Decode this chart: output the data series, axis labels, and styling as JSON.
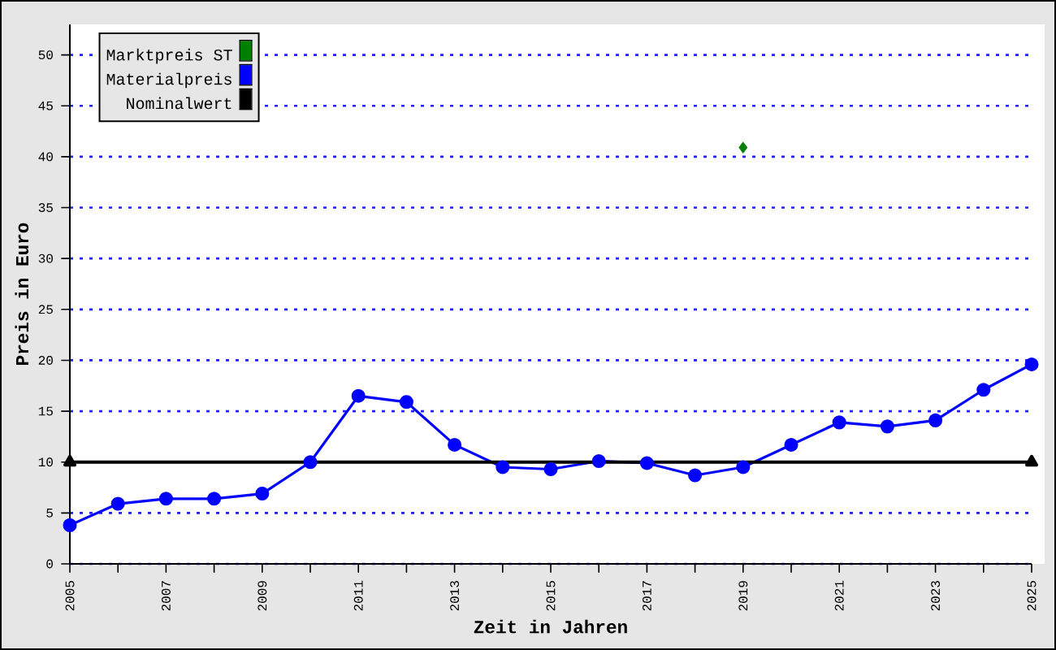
{
  "chart_data": {
    "type": "line",
    "xlabel": "Zeit in Jahren",
    "ylabel": "Preis in Euro",
    "xlim": [
      2005,
      2025
    ],
    "ylim": [
      0,
      53
    ],
    "xticks": [
      2005,
      {
        "value": 2006,
        "label": null
      },
      2007,
      {
        "value": 2008,
        "label": null
      },
      2009,
      {
        "value": 2010,
        "label": null
      },
      2011,
      {
        "value": 2012,
        "label": null
      },
      2013,
      {
        "value": 2014,
        "label": null
      },
      2015,
      {
        "value": 2016,
        "label": null
      },
      2017,
      {
        "value": 2018,
        "label": null
      },
      2019,
      {
        "value": 2020,
        "label": null
      },
      2021,
      {
        "value": 2022,
        "label": null
      },
      2023,
      {
        "value": 2024,
        "label": null
      },
      2025
    ],
    "yticks": [
      0,
      5,
      10,
      15,
      20,
      25,
      30,
      35,
      40,
      45,
      50
    ],
    "grid": "y",
    "legend": "top left",
    "series": [
      {
        "name": "Marktpreis ST",
        "type": "scatter",
        "marker": "diamond",
        "color": "#008000",
        "x": [
          2019
        ],
        "values": [
          40.9
        ]
      },
      {
        "name": "Materialpreis",
        "marker": "circle",
        "color": "#0000ff",
        "x": [
          2005,
          2006,
          2007,
          2008,
          2009,
          2010,
          2011,
          2012,
          2013,
          2014,
          2015,
          2016,
          2017,
          2018,
          2019,
          2020,
          2021,
          2022,
          2023,
          2024,
          2025
        ],
        "values": [
          3.8,
          5.9,
          6.4,
          6.4,
          6.9,
          10,
          16.5,
          15.9,
          11.7,
          9.5,
          9.3,
          10.1,
          9.9,
          8.7,
          9.5,
          11.7,
          13.9,
          13.5,
          14.1,
          17.1,
          19.6
        ]
      },
      {
        "name": "Nominalwert",
        "marker": "triangle",
        "color": "#000000",
        "x": [
          2005,
          2025
        ],
        "values": [
          10,
          10
        ]
      }
    ]
  }
}
